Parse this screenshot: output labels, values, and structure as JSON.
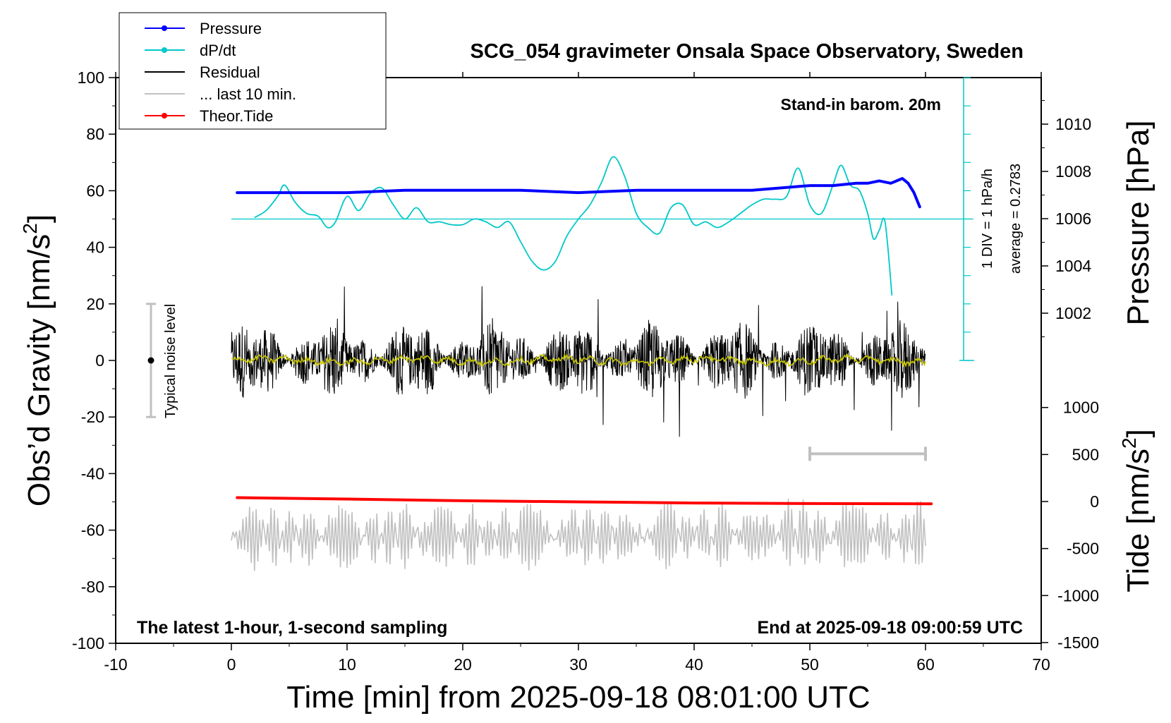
{
  "chart_data": {
    "type": "line",
    "title": "SCG_054 gravimeter Onsala Space Observatory, Sweden",
    "xlabel": "Time [min] from 2025-09-18 08:01:00 UTC",
    "ylabel_left_main": "Obs’d Gravity [nm/s",
    "ylabel_left_sup": "2",
    "ylabel_left_end": "]",
    "ylabel_right_pressure": "Pressure [hPa]",
    "ylabel_right_tide_main": "Tide [nm/s",
    "ylabel_right_tide_sup": "2",
    "ylabel_right_tide_end": "]",
    "xlim": [
      -10,
      70
    ],
    "ylim_left": [
      -100,
      100
    ],
    "xticks": [
      "-10",
      "0",
      "10",
      "20",
      "30",
      "40",
      "50",
      "60",
      "70"
    ],
    "yticks_left": [
      "100",
      "80",
      "60",
      "40",
      "20",
      "0",
      "-20",
      "-40",
      "-60",
      "-80",
      "-100"
    ],
    "pressure_ticks": [
      "1010",
      "1008",
      "1006",
      "1004",
      "1002"
    ],
    "tide_ticks": [
      "1000",
      "500",
      "0",
      "-500",
      "-1000",
      "-1500"
    ],
    "grid": false,
    "legend_position": "top-left",
    "legend": [
      {
        "label": "Pressure",
        "color": "#0000ff",
        "marker": true
      },
      {
        "label": "dP/dt",
        "color": "#00c8c8",
        "marker": true
      },
      {
        "label": "Residual",
        "color": "#000000",
        "marker": false
      },
      {
        "label": "... last 10 min.",
        "color": "#c0c0c0",
        "marker": false
      },
      {
        "label": "Theor.Tide",
        "color": "#ff0000",
        "marker": true
      }
    ],
    "annotations": {
      "barometer": "Stand-in barom. 20m",
      "dpdt_scale": "1 DIV = 1 hPa/h",
      "dpdt_average": "average = 0.2783",
      "noise": "Typical noise level",
      "latest": "The latest 1-hour, 1-second sampling",
      "end_time": "End at 2025-09-18 09:00:59 UTC"
    },
    "series": [
      {
        "name": "Pressure",
        "unit": "hPa",
        "color": "#0000ff",
        "x": [
          0.5,
          5,
          10,
          15,
          20,
          25,
          30,
          35,
          40,
          45,
          50,
          52,
          54,
          55,
          56,
          57,
          58,
          58.5,
          59,
          59.5
        ],
        "values": [
          1007.1,
          1007.1,
          1007.1,
          1007.2,
          1007.2,
          1007.2,
          1007.1,
          1007.2,
          1007.2,
          1007.2,
          1007.4,
          1007.4,
          1007.5,
          1007.5,
          1007.6,
          1007.5,
          1007.7,
          1007.5,
          1007.1,
          1006.5
        ]
      },
      {
        "name": "dP/dt",
        "unit": "nm/s2 (plot units, 1 DIV = 1 hPa/h)",
        "color": "#00c8c8",
        "x": [
          2,
          3,
          4,
          4.6,
          5.5,
          6.5,
          7.5,
          8.3,
          9,
          10,
          11,
          12,
          13,
          14,
          15,
          16,
          17,
          18,
          19,
          20,
          21,
          22,
          23,
          24,
          25,
          26,
          27,
          28,
          29,
          30,
          31,
          32,
          33,
          34,
          35,
          36,
          37,
          38,
          39,
          40,
          41,
          42,
          43,
          44,
          45,
          46,
          47,
          48,
          49,
          50,
          51,
          52,
          52.7,
          53.5,
          54.3,
          55,
          55.5,
          56,
          56.5,
          57.1
        ],
        "values": [
          50.5,
          53,
          58,
          62,
          56,
          52,
          51,
          47,
          49,
          58,
          53,
          59,
          61,
          55,
          50,
          54,
          49,
          49,
          48,
          48,
          50,
          49,
          47,
          49,
          42,
          35,
          32,
          35,
          44,
          50,
          55,
          63,
          72,
          65,
          52,
          47,
          45,
          54,
          55,
          48,
          49,
          47,
          49,
          52,
          55,
          57,
          57,
          58,
          68,
          55,
          52,
          62,
          69,
          62,
          60,
          52,
          43,
          46,
          49,
          23
        ]
      },
      {
        "name": "Residual",
        "unit": "nm/s2",
        "color": "#000000",
        "x": [
          0,
          60
        ],
        "envelope": [
          -27,
          33
        ]
      },
      {
        "name": "... last 10 min.",
        "unit": "nm/s2",
        "color": "#c0c0c0",
        "x": [
          0,
          60
        ],
        "envelope": [
          -87,
          -41
        ]
      },
      {
        "name": "Theor.Tide",
        "unit": "nm/s2",
        "color": "#ff0000",
        "x": [
          0.5,
          10,
          20,
          30,
          40,
          50,
          60.5
        ],
        "values": [
          -48.5,
          -49,
          -49.6,
          -50,
          -50.4,
          -50.6,
          -50.7
        ]
      }
    ]
  }
}
